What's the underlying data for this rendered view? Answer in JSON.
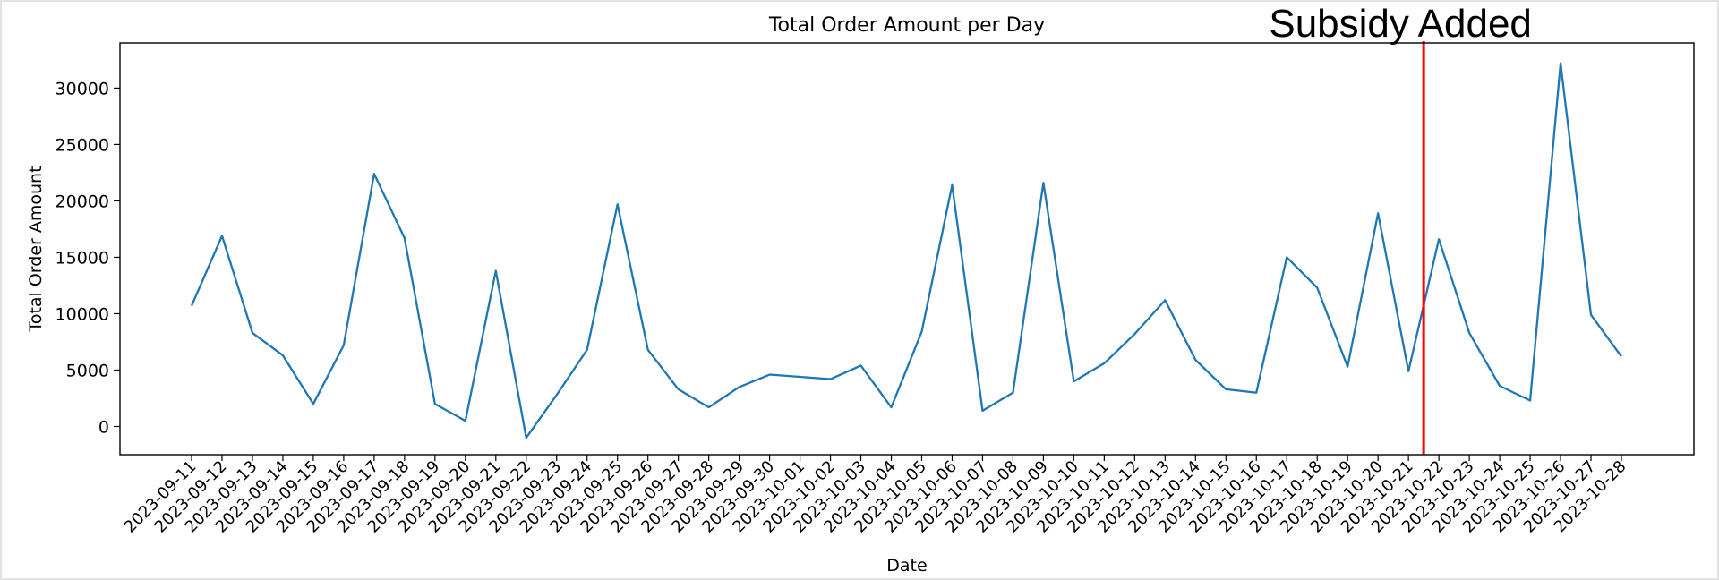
{
  "chart_data": {
    "type": "line",
    "title": "Total Order Amount per Day",
    "xlabel": "Date",
    "ylabel": "Total Order Amount",
    "ylim": [
      -2500,
      34000
    ],
    "yticks": [
      0,
      5000,
      10000,
      15000,
      20000,
      25000,
      30000
    ],
    "grid": false,
    "categories": [
      "2023-09-11",
      "2023-09-12",
      "2023-09-13",
      "2023-09-14",
      "2023-09-15",
      "2023-09-16",
      "2023-09-17",
      "2023-09-18",
      "2023-09-19",
      "2023-09-20",
      "2023-09-21",
      "2023-09-22",
      "2023-09-23",
      "2023-09-24",
      "2023-09-25",
      "2023-09-26",
      "2023-09-27",
      "2023-09-28",
      "2023-09-29",
      "2023-09-30",
      "2023-10-01",
      "2023-10-02",
      "2023-10-03",
      "2023-10-04",
      "2023-10-05",
      "2023-10-06",
      "2023-10-07",
      "2023-10-08",
      "2023-10-09",
      "2023-10-10",
      "2023-10-11",
      "2023-10-12",
      "2023-10-13",
      "2023-10-14",
      "2023-10-15",
      "2023-10-16",
      "2023-10-17",
      "2023-10-18",
      "2023-10-19",
      "2023-10-20",
      "2023-10-21",
      "2023-10-22",
      "2023-10-23",
      "2023-10-24",
      "2023-10-25",
      "2023-10-26",
      "2023-10-27",
      "2023-10-28"
    ],
    "series": [
      {
        "color": "#1f77b4",
        "values": [
          10700,
          16900,
          8300,
          6300,
          2000,
          7200,
          22400,
          16700,
          2000,
          500,
          13800,
          -1000,
          2800,
          6800,
          19700,
          6800,
          3300,
          1700,
          3500,
          4600,
          4400,
          4200,
          5400,
          1700,
          8400,
          21400,
          1400,
          3000,
          21600,
          4000,
          5600,
          8200,
          11200,
          5900,
          3300,
          3000,
          15000,
          12300,
          5300,
          18900,
          4900,
          16600,
          8300,
          3600,
          2300,
          32200,
          9900,
          6200
        ]
      }
    ],
    "annotations": [
      {
        "text": "Subsidy Added",
        "x": "2023-10-21",
        "x_offset": 0.5,
        "color": "#ff0000"
      }
    ]
  }
}
